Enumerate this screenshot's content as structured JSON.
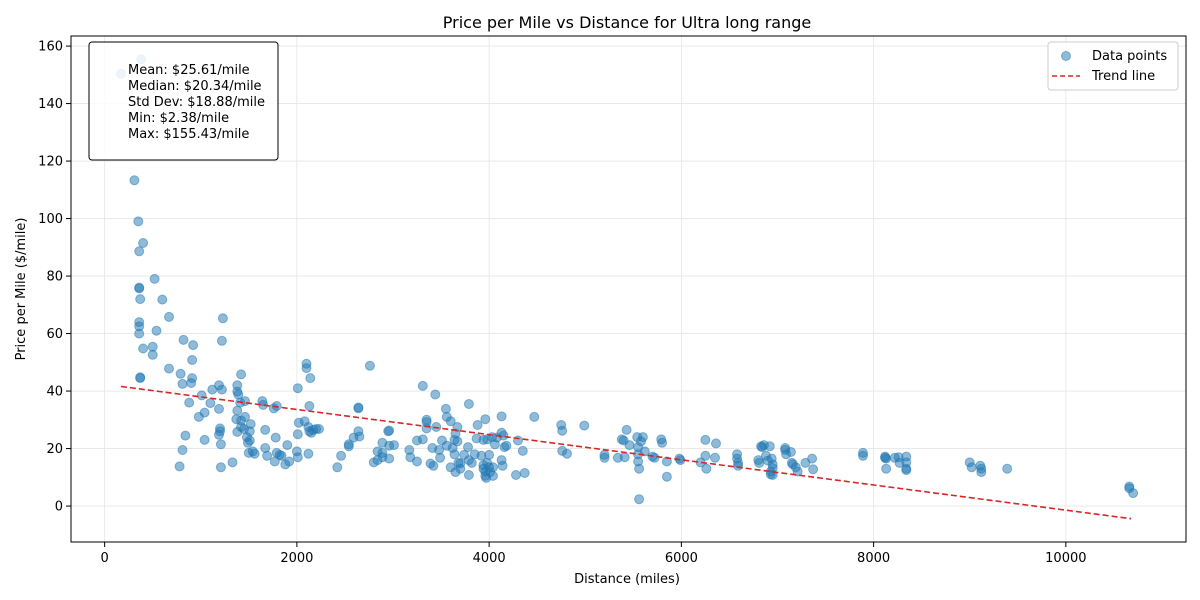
{
  "chart_data": {
    "type": "scatter",
    "title": "Price per Mile vs Distance for Ultra long range",
    "xlabel": "Distance (miles)",
    "ylabel": "Price per Mile ($/mile)",
    "xlim": [
      -350,
      11250
    ],
    "ylim": [
      -12.5,
      163.5
    ],
    "xticks": [
      0,
      2000,
      4000,
      6000,
      8000,
      10000
    ],
    "yticks": [
      0,
      20,
      40,
      60,
      80,
      100,
      120,
      140,
      160
    ],
    "grid": true,
    "legend_position": "top-right",
    "colors": {
      "points": "#1f77b4",
      "trend": "#d62728"
    },
    "legend": [
      "Data points",
      "Trend line"
    ],
    "stats": [
      "Mean: $25.61/mile",
      "Median: $20.34/mile",
      "Std Dev: $18.88/mile",
      "Min: $2.38/mile",
      "Max: $155.43/mile"
    ],
    "trend_line": {
      "x": [
        170,
        10680
      ],
      "y": [
        41.6,
        -4.4
      ]
    },
    "points": [
      [
        170,
        150.3
      ],
      [
        380,
        155.4
      ],
      [
        310,
        113.3
      ],
      [
        350,
        99.0
      ],
      [
        360,
        88.6
      ],
      [
        400,
        91.5
      ],
      [
        360,
        76.0
      ],
      [
        360,
        75.7
      ],
      [
        370,
        72.0
      ],
      [
        360,
        64.0
      ],
      [
        360,
        62.5
      ],
      [
        360,
        60.0
      ],
      [
        400,
        54.8
      ],
      [
        370,
        44.8
      ],
      [
        370,
        44.5
      ],
      [
        520,
        79.0
      ],
      [
        600,
        71.8
      ],
      [
        670,
        65.8
      ],
      [
        540,
        61.0
      ],
      [
        500,
        55.4
      ],
      [
        500,
        52.6
      ],
      [
        670,
        47.8
      ],
      [
        790,
        46.0
      ],
      [
        820,
        57.8
      ],
      [
        920,
        56.0
      ],
      [
        910,
        50.8
      ],
      [
        910,
        44.5
      ],
      [
        900,
        42.8
      ],
      [
        810,
        42.5
      ],
      [
        1010,
        38.5
      ],
      [
        880,
        36.0
      ],
      [
        1120,
        40.5
      ],
      [
        1190,
        42.0
      ],
      [
        1220,
        40.5
      ],
      [
        1100,
        35.8
      ],
      [
        1190,
        33.8
      ],
      [
        980,
        31.0
      ],
      [
        1040,
        32.5
      ],
      [
        1220,
        57.5
      ],
      [
        1230,
        65.3
      ],
      [
        1420,
        45.8
      ],
      [
        1380,
        42.0
      ],
      [
        1380,
        39.8
      ],
      [
        1390,
        38.8
      ],
      [
        1410,
        36.0
      ],
      [
        1460,
        36.5
      ],
      [
        1380,
        33.2
      ],
      [
        1420,
        29.8
      ],
      [
        1370,
        30.2
      ],
      [
        1460,
        31.0
      ],
      [
        1520,
        28.5
      ],
      [
        1420,
        27.5
      ],
      [
        1450,
        26.8
      ],
      [
        1380,
        25.8
      ],
      [
        1510,
        26.0
      ],
      [
        1200,
        27.0
      ],
      [
        1200,
        26.0
      ],
      [
        1190,
        24.8
      ],
      [
        1480,
        24.0
      ],
      [
        1490,
        22.0
      ],
      [
        1510,
        22.8
      ],
      [
        1500,
        18.5
      ],
      [
        1540,
        19.0
      ],
      [
        1560,
        18.2
      ],
      [
        1210,
        21.5
      ],
      [
        1040,
        23.0
      ],
      [
        840,
        24.5
      ],
      [
        810,
        19.5
      ],
      [
        780,
        13.8
      ],
      [
        1210,
        13.5
      ],
      [
        1330,
        15.2
      ],
      [
        1640,
        36.5
      ],
      [
        1650,
        35.2
      ],
      [
        1760,
        34.0
      ],
      [
        1790,
        34.8
      ],
      [
        1670,
        26.5
      ],
      [
        1780,
        23.8
      ],
      [
        1670,
        20.2
      ],
      [
        1690,
        17.5
      ],
      [
        1770,
        15.5
      ],
      [
        1790,
        18.5
      ],
      [
        1820,
        17.8
      ],
      [
        1840,
        17.5
      ],
      [
        1880,
        14.5
      ],
      [
        1900,
        21.2
      ],
      [
        1920,
        15.5
      ],
      [
        2010,
        41.0
      ],
      [
        2020,
        29.0
      ],
      [
        2080,
        29.5
      ],
      [
        2100,
        49.5
      ],
      [
        2100,
        48.0
      ],
      [
        2140,
        44.5
      ],
      [
        2130,
        34.8
      ],
      [
        2120,
        27.5
      ],
      [
        2130,
        26.0
      ],
      [
        2150,
        25.5
      ],
      [
        2170,
        26.5
      ],
      [
        2200,
        26.8
      ],
      [
        2230,
        26.8
      ],
      [
        2010,
        25.0
      ],
      [
        2000,
        19.0
      ],
      [
        2010,
        17.0
      ],
      [
        2120,
        18.2
      ],
      [
        2420,
        13.5
      ],
      [
        2460,
        17.5
      ],
      [
        2540,
        20.8
      ],
      [
        2540,
        21.5
      ],
      [
        2590,
        23.8
      ],
      [
        2640,
        34.0
      ],
      [
        2640,
        34.3
      ],
      [
        2640,
        26.0
      ],
      [
        2650,
        24.2
      ],
      [
        2760,
        48.8
      ],
      [
        2800,
        15.2
      ],
      [
        2840,
        19.0
      ],
      [
        2840,
        16.0
      ],
      [
        2890,
        22.0
      ],
      [
        2890,
        18.5
      ],
      [
        2890,
        17.0
      ],
      [
        2950,
        26.0
      ],
      [
        2960,
        26.3
      ],
      [
        2960,
        21.0
      ],
      [
        3010,
        21.2
      ],
      [
        2960,
        16.5
      ],
      [
        3170,
        19.5
      ],
      [
        3180,
        17.0
      ],
      [
        3250,
        15.5
      ],
      [
        3250,
        22.8
      ],
      [
        3310,
        41.8
      ],
      [
        3310,
        23.2
      ],
      [
        3350,
        30.0
      ],
      [
        3350,
        29.2
      ],
      [
        3350,
        27.0
      ],
      [
        3410,
        20.2
      ],
      [
        3390,
        14.8
      ],
      [
        3420,
        14.0
      ],
      [
        3440,
        38.8
      ],
      [
        3450,
        27.5
      ],
      [
        3480,
        19.5
      ],
      [
        3490,
        16.8
      ],
      [
        3510,
        22.8
      ],
      [
        3550,
        33.8
      ],
      [
        3560,
        31.0
      ],
      [
        3560,
        21.0
      ],
      [
        3600,
        29.5
      ],
      [
        3600,
        13.5
      ],
      [
        3620,
        20.2
      ],
      [
        3640,
        18.0
      ],
      [
        3640,
        23.0
      ],
      [
        3650,
        25.2
      ],
      [
        3650,
        11.8
      ],
      [
        3670,
        22.5
      ],
      [
        3670,
        27.5
      ],
      [
        3680,
        15.0
      ],
      [
        3700,
        13.0
      ],
      [
        3700,
        14.8
      ],
      [
        3740,
        17.8
      ],
      [
        3780,
        20.5
      ],
      [
        3790,
        35.5
      ],
      [
        3790,
        16.0
      ],
      [
        3790,
        10.8
      ],
      [
        3820,
        15.0
      ],
      [
        3850,
        18.0
      ],
      [
        3880,
        28.2
      ],
      [
        3870,
        23.5
      ],
      [
        3920,
        17.5
      ],
      [
        3940,
        23.0
      ],
      [
        3940,
        14.2
      ],
      [
        3940,
        13.0
      ],
      [
        3960,
        30.2
      ],
      [
        3960,
        12.0
      ],
      [
        3960,
        10.5
      ],
      [
        3970,
        9.8
      ],
      [
        3980,
        23.2
      ],
      [
        3980,
        15.0
      ],
      [
        4000,
        17.8
      ],
      [
        4000,
        13.5
      ],
      [
        4010,
        11.8
      ],
      [
        4030,
        24.0
      ],
      [
        4040,
        13.5
      ],
      [
        4040,
        10.5
      ],
      [
        4060,
        21.5
      ],
      [
        4080,
        23.8
      ],
      [
        4130,
        31.2
      ],
      [
        4130,
        25.5
      ],
      [
        4130,
        16.0
      ],
      [
        4140,
        14.0
      ],
      [
        4150,
        24.5
      ],
      [
        4160,
        20.5
      ],
      [
        4180,
        21.0
      ],
      [
        4280,
        10.8
      ],
      [
        4300,
        22.8
      ],
      [
        4350,
        19.2
      ],
      [
        4370,
        11.5
      ],
      [
        4470,
        31.0
      ],
      [
        4750,
        28.2
      ],
      [
        4760,
        26.2
      ],
      [
        4760,
        19.2
      ],
      [
        4810,
        18.2
      ],
      [
        4990,
        28.0
      ],
      [
        5200,
        17.8
      ],
      [
        5200,
        16.8
      ],
      [
        5340,
        16.8
      ],
      [
        5380,
        23.2
      ],
      [
        5400,
        22.8
      ],
      [
        5410,
        17.0
      ],
      [
        5430,
        26.5
      ],
      [
        5460,
        21.2
      ],
      [
        5540,
        24.0
      ],
      [
        5550,
        20.5
      ],
      [
        5550,
        18.0
      ],
      [
        5550,
        15.5
      ],
      [
        5560,
        13.0
      ],
      [
        5560,
        2.4
      ],
      [
        5580,
        22.5
      ],
      [
        5600,
        24.0
      ],
      [
        5620,
        19.0
      ],
      [
        5700,
        17.2
      ],
      [
        5720,
        16.8
      ],
      [
        5790,
        23.2
      ],
      [
        5800,
        22.0
      ],
      [
        5850,
        15.5
      ],
      [
        5850,
        10.2
      ],
      [
        5980,
        16.5
      ],
      [
        5990,
        16.0
      ],
      [
        6200,
        15.2
      ],
      [
        6250,
        23.0
      ],
      [
        6250,
        17.5
      ],
      [
        6260,
        13.0
      ],
      [
        6350,
        16.8
      ],
      [
        6360,
        21.8
      ],
      [
        6580,
        18.0
      ],
      [
        6580,
        16.5
      ],
      [
        6590,
        15.0
      ],
      [
        6590,
        14.0
      ],
      [
        6800,
        16.0
      ],
      [
        6810,
        15.0
      ],
      [
        6830,
        20.8
      ],
      [
        6840,
        20.5
      ],
      [
        6860,
        21.2
      ],
      [
        6880,
        17.5
      ],
      [
        6900,
        15.8
      ],
      [
        6920,
        20.8
      ],
      [
        6930,
        12.0
      ],
      [
        6930,
        11.0
      ],
      [
        6940,
        16.5
      ],
      [
        6950,
        14.5
      ],
      [
        6950,
        13.2
      ],
      [
        6950,
        10.8
      ],
      [
        7080,
        20.2
      ],
      [
        7080,
        19.5
      ],
      [
        7090,
        18.0
      ],
      [
        7140,
        18.8
      ],
      [
        7150,
        15.0
      ],
      [
        7160,
        14.5
      ],
      [
        7190,
        13.5
      ],
      [
        7210,
        12.0
      ],
      [
        7290,
        15.0
      ],
      [
        7360,
        16.5
      ],
      [
        7370,
        12.8
      ],
      [
        7890,
        18.5
      ],
      [
        7890,
        17.5
      ],
      [
        8120,
        17.2
      ],
      [
        8120,
        16.8
      ],
      [
        8130,
        16.5
      ],
      [
        8130,
        13.0
      ],
      [
        8220,
        16.8
      ],
      [
        8260,
        17.0
      ],
      [
        8270,
        15.0
      ],
      [
        8340,
        17.2
      ],
      [
        8340,
        15.2
      ],
      [
        8340,
        13.0
      ],
      [
        8340,
        12.5
      ],
      [
        9000,
        15.2
      ],
      [
        9020,
        13.5
      ],
      [
        9110,
        14.0
      ],
      [
        9120,
        13.0
      ],
      [
        9120,
        11.8
      ],
      [
        9390,
        13.0
      ],
      [
        10660,
        6.8
      ],
      [
        10660,
        6.2
      ],
      [
        10700,
        4.5
      ]
    ]
  }
}
